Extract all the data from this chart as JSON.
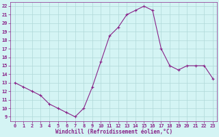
{
  "x": [
    0,
    1,
    2,
    3,
    4,
    5,
    6,
    7,
    8,
    9,
    10,
    11,
    12,
    13,
    14,
    15,
    16,
    17,
    18,
    19,
    20,
    21,
    22,
    23
  ],
  "y": [
    13,
    12.5,
    12,
    11.5,
    10.5,
    10,
    9.5,
    9,
    10,
    12.5,
    15.5,
    18.5,
    19.5,
    21,
    21.5,
    22,
    21.5,
    17,
    15,
    14.5,
    15,
    15,
    15,
    13.5
  ],
  "line_color": "#882288",
  "marker": "+",
  "marker_size": 3,
  "marker_lw": 0.8,
  "line_width": 0.8,
  "bg_color": "#d4f4f4",
  "grid_color": "#b0d8d8",
  "xlabel": "Windchill (Refroidissement éolien,°C)",
  "xlabel_color": "#882288",
  "tick_color": "#882288",
  "label_fontsize": 5,
  "xlabel_fontsize": 5.5,
  "ylim": [
    8.5,
    22.5
  ],
  "xlim": [
    -0.5,
    23.5
  ],
  "yticks": [
    9,
    10,
    11,
    12,
    13,
    14,
    15,
    16,
    17,
    18,
    19,
    20,
    21,
    22
  ],
  "xticks": [
    0,
    1,
    2,
    3,
    4,
    5,
    6,
    7,
    8,
    9,
    10,
    11,
    12,
    13,
    14,
    15,
    16,
    17,
    18,
    19,
    20,
    21,
    22,
    23
  ]
}
